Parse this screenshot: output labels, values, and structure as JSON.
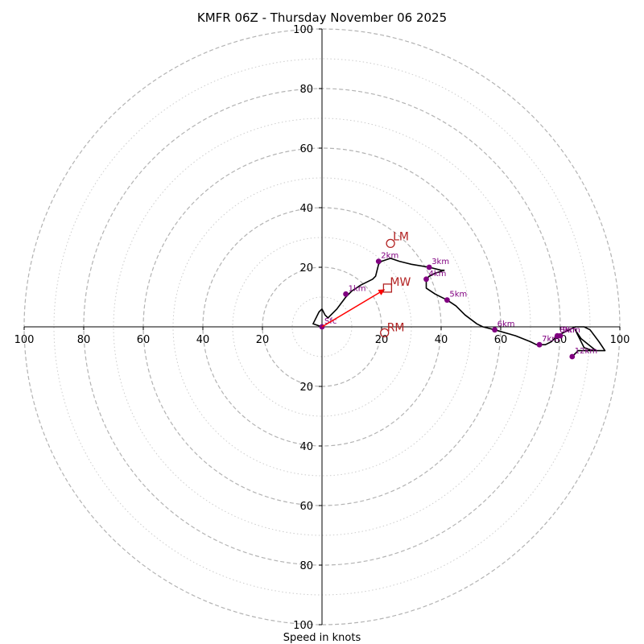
{
  "chart_data": {
    "type": "scatter",
    "title": "KMFR 06Z - Thursday November 06 2025",
    "xlabel": "Speed in knots",
    "xlim": [
      -100,
      100
    ],
    "ylim": [
      -100,
      100
    ],
    "major_rings": [
      20,
      40,
      60,
      80,
      100
    ],
    "minor_rings": [
      10,
      30,
      50,
      70,
      90
    ],
    "x_ticks": [
      "100",
      "80",
      "60",
      "40",
      "20",
      "20",
      "40",
      "60",
      "80",
      "100"
    ],
    "y_ticks": [
      "100",
      "80",
      "60",
      "40",
      "20",
      "20",
      "40",
      "60",
      "80",
      "100"
    ],
    "x_tick_values": [
      -100,
      -80,
      -60,
      -40,
      -20,
      20,
      40,
      60,
      80,
      100
    ],
    "y_tick_values": [
      100,
      80,
      60,
      40,
      20,
      -20,
      -40,
      -60,
      -80,
      -100
    ],
    "hodograph_line": [
      [
        0,
        0
      ],
      [
        -3,
        1
      ],
      [
        -1,
        5
      ],
      [
        0,
        6
      ],
      [
        1,
        4
      ],
      [
        2,
        3
      ],
      [
        5,
        6
      ],
      [
        8,
        10
      ],
      [
        10,
        12
      ],
      [
        13,
        14
      ],
      [
        17,
        16
      ],
      [
        18,
        17
      ],
      [
        19,
        21
      ],
      [
        20,
        22
      ],
      [
        23,
        23
      ],
      [
        26,
        22
      ],
      [
        30,
        21
      ],
      [
        36,
        20
      ],
      [
        40,
        19
      ],
      [
        41,
        19
      ],
      [
        38,
        18
      ],
      [
        36,
        17
      ],
      [
        35,
        16
      ],
      [
        35,
        13
      ],
      [
        38,
        11
      ],
      [
        42,
        9
      ],
      [
        45,
        7
      ],
      [
        48,
        4
      ],
      [
        52,
        1
      ],
      [
        54,
        0
      ],
      [
        58,
        -1
      ],
      [
        65,
        -3
      ],
      [
        70,
        -5
      ],
      [
        72,
        -6
      ],
      [
        75,
        -6
      ],
      [
        77,
        -5
      ],
      [
        79,
        -3
      ],
      [
        81,
        -2
      ],
      [
        83,
        -1
      ],
      [
        85,
        0
      ],
      [
        88,
        0
      ],
      [
        90,
        -1
      ],
      [
        93,
        -5
      ],
      [
        95,
        -8
      ],
      [
        91,
        -8
      ],
      [
        88,
        -7
      ],
      [
        85,
        -1
      ],
      [
        87,
        -4
      ],
      [
        92,
        -8
      ],
      [
        86,
        -8
      ],
      [
        84,
        -10
      ]
    ],
    "height_markers": [
      {
        "label": "Sfc",
        "x": 0,
        "y": 0
      },
      {
        "label": "1km",
        "x": 8,
        "y": 11
      },
      {
        "label": "2km",
        "x": 19,
        "y": 22
      },
      {
        "label": "3km",
        "x": 36,
        "y": 20
      },
      {
        "label": "4km",
        "x": 35,
        "y": 16
      },
      {
        "label": "5km",
        "x": 42,
        "y": 9
      },
      {
        "label": "6km",
        "x": 58,
        "y": -1
      },
      {
        "label": "7km",
        "x": 73,
        "y": -6
      },
      {
        "label": "8km",
        "x": 79,
        "y": -3
      },
      {
        "label": "9km",
        "x": 80,
        "y": -3
      },
      {
        "label": "12km",
        "x": 84,
        "y": -10
      }
    ],
    "storm_motion": {
      "LM": {
        "label": "LM",
        "x": 23,
        "y": 28
      },
      "MW": {
        "label": "MW",
        "x": 22,
        "y": 13
      },
      "RM": {
        "label": "RM",
        "x": 21,
        "y": -2
      }
    },
    "colors": {
      "hodograph": "#000000",
      "height_marker": "#800080",
      "storm_marker": "#b22222",
      "shear_vector": "#ff0000",
      "major_ring": "#b3b3b3",
      "minor_ring": "#cccccc"
    }
  }
}
